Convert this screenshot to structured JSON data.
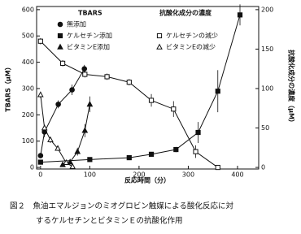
{
  "chart_data": {
    "type": "line",
    "y_label": "TBARS（μM）",
    "y2_label": "抗酸化成分の濃度（μM）",
    "x_label": "反応時間（分）",
    "legend_headers": [
      "TBARS",
      "抗酸化成分の濃度"
    ],
    "caption": [
      "図２　魚油エマルジョンのミオグロビン触媒による酸化反応に対",
      "するケルセチンとビタミンＥの抗酸化作用"
    ],
    "xlim": [
      -8,
      443
    ],
    "xticks": [
      0,
      100,
      200,
      300,
      400
    ],
    "ylim": [
      -6,
      612
    ],
    "yticks": [
      0,
      100,
      200,
      300,
      400,
      500,
      600
    ],
    "y2lim": [
      -2,
      204
    ],
    "y2ticks": [
      0,
      50,
      100,
      150,
      200
    ],
    "series": [
      {
        "name": "無添加",
        "color": "#111111",
        "marker": "circle",
        "filled": true,
        "x": [
          0,
          8,
          36,
          64,
          89
        ],
        "values": [
          45,
          135,
          240,
          295,
          375
        ],
        "errors": [
          10,
          20,
          15,
          20,
          15
        ]
      },
      {
        "name": "ケルセチン添加",
        "color": "#111111",
        "marker": "square",
        "filled": true,
        "x": [
          0,
          100,
          180,
          225,
          275,
          320,
          360,
          405
        ],
        "values": [
          20,
          30,
          37,
          50,
          68,
          133,
          290,
          580
        ],
        "errors": [
          5,
          5,
          5,
          8,
          10,
          40,
          80,
          40
        ]
      },
      {
        "name": "ビタミンE添加",
        "color": "#111111",
        "marker": "triangle",
        "filled": true,
        "x": [
          45,
          60,
          75,
          90,
          100
        ],
        "values": [
          10,
          20,
          60,
          140,
          240
        ],
        "errors": [
          5,
          5,
          15,
          25,
          30
        ]
      },
      {
        "name": "ケルセチンの減少",
        "color": "#111111",
        "marker": "square",
        "filled": false,
        "axis": "y2",
        "x": [
          0,
          45,
          90,
          135,
          180,
          225,
          270,
          315,
          360
        ],
        "values": [
          160,
          132,
          118,
          115,
          108,
          85,
          74,
          20,
          0
        ],
        "errors": [
          4,
          4,
          4,
          4,
          4,
          8,
          10,
          8,
          2
        ]
      },
      {
        "name": "ビタミンEの減少",
        "color": "#111111",
        "marker": "triangle",
        "filled": false,
        "axis": "y2",
        "x": [
          0,
          8,
          20,
          35,
          52,
          65
        ],
        "values": [
          92,
          50,
          35,
          24,
          6,
          1
        ],
        "errors": [
          4,
          4,
          4,
          3,
          2,
          1
        ]
      }
    ]
  }
}
